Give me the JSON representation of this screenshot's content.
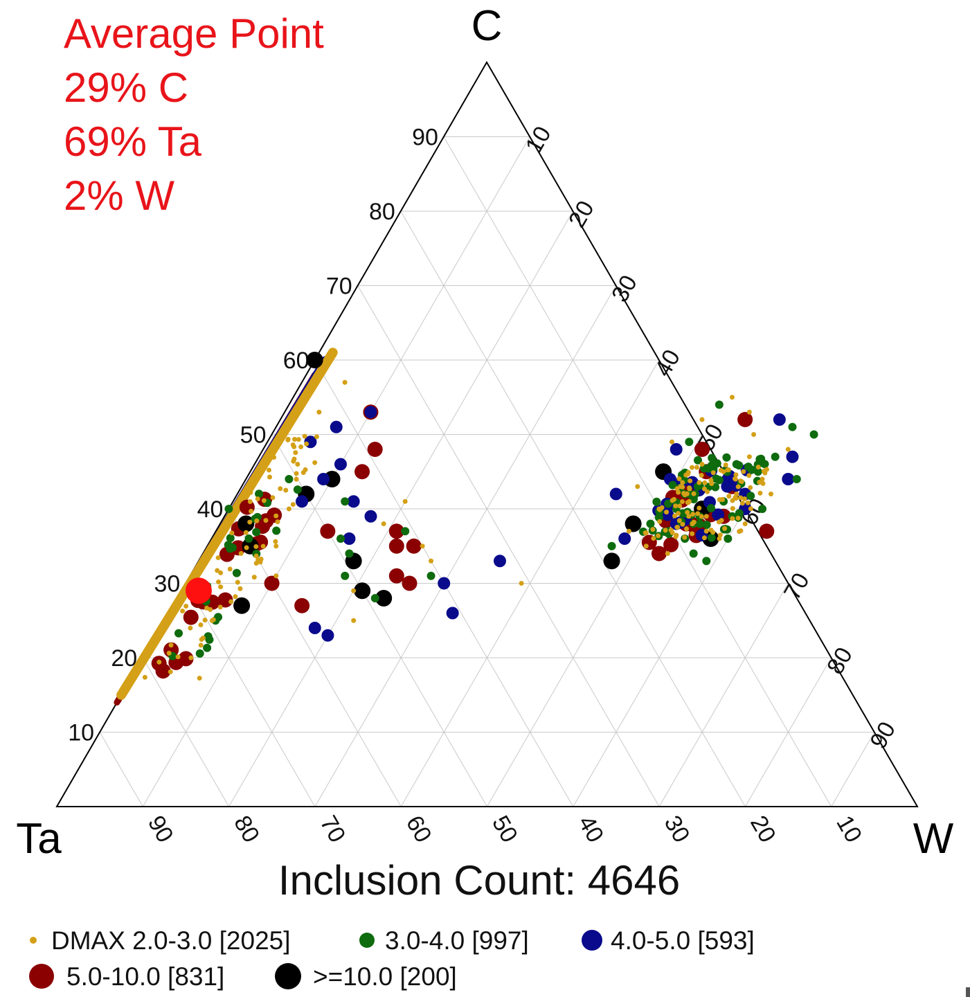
{
  "average_point": {
    "title": "Average Point",
    "c_text": "29% C",
    "ta_text": "69% Ta",
    "w_text": "2% W"
  },
  "inclusion_count_text": "Inclusion Count: 4646",
  "colors": {
    "annotation": "#e8141a",
    "grid": "#c9c9c9",
    "axis": "#000000"
  },
  "chart_data": {
    "type": "scatter",
    "subtype": "ternary",
    "vertices": {
      "top": "C",
      "left": "Ta",
      "right": "W"
    },
    "axis_ticks": [
      10,
      20,
      30,
      40,
      50,
      60,
      70,
      80,
      90
    ],
    "grid": true,
    "legend_position": "bottom",
    "average_point": {
      "C": 29,
      "Ta": 69,
      "W": 2,
      "color": "#ff1010"
    },
    "series": [
      {
        "name": "DMAX 2.0-3.0 [2025]",
        "color": "#d4a017",
        "size": "smallest"
      },
      {
        "name": "3.0-4.0 [997]",
        "color": "#0e6b0e",
        "size": "small"
      },
      {
        "name": "4.0-5.0 [593]",
        "color": "#0a0a8c",
        "size": "medium"
      },
      {
        "name": "5.0-10.0 [831]",
        "color": "#8b0000",
        "size": "large"
      },
      {
        "name": ">=10.0 [200]",
        "color": "#000000",
        "size": "largest"
      }
    ],
    "points": [
      {
        "s": 4,
        "C": 60,
        "W": 0
      },
      {
        "s": 4,
        "C": 38,
        "W": 3
      },
      {
        "s": 4,
        "C": 35,
        "W": 5
      },
      {
        "s": 4,
        "C": 27,
        "W": 8
      },
      {
        "s": 4,
        "C": 42,
        "W": 8
      },
      {
        "s": 4,
        "C": 44,
        "W": 10
      },
      {
        "s": 4,
        "C": 33,
        "W": 18
      },
      {
        "s": 4,
        "C": 29,
        "W": 21
      },
      {
        "s": 4,
        "C": 28,
        "W": 24
      },
      {
        "s": 4,
        "C": 38,
        "W": 48
      },
      {
        "s": 4,
        "C": 45,
        "W": 48
      },
      {
        "s": 4,
        "C": 33,
        "W": 48
      },
      {
        "s": 4,
        "C": 40,
        "W": 55
      },
      {
        "s": 4,
        "C": 36,
        "W": 58
      },
      {
        "s": 3,
        "C": 53,
        "W": 10
      },
      {
        "s": 3,
        "C": 37,
        "W": 13
      },
      {
        "s": 3,
        "C": 48,
        "W": 13
      },
      {
        "s": 3,
        "C": 45,
        "W": 13
      },
      {
        "s": 3,
        "C": 37,
        "W": 21
      },
      {
        "s": 3,
        "C": 35,
        "W": 22
      },
      {
        "s": 3,
        "C": 35,
        "W": 24
      },
      {
        "s": 3,
        "C": 31,
        "W": 24
      },
      {
        "s": 3,
        "C": 30,
        "W": 26
      },
      {
        "s": 3,
        "C": 30,
        "W": 10
      },
      {
        "s": 3,
        "C": 27,
        "W": 15
      },
      {
        "s": 3,
        "C": 34,
        "W": 53
      },
      {
        "s": 3,
        "C": 43,
        "W": 57
      },
      {
        "s": 3,
        "C": 39,
        "W": 58
      },
      {
        "s": 3,
        "C": 45,
        "W": 53
      },
      {
        "s": 3,
        "C": 37,
        "W": 64
      },
      {
        "s": 3,
        "C": 52,
        "W": 54
      },
      {
        "s": 3,
        "C": 48,
        "W": 51
      },
      {
        "s": 2,
        "C": 49,
        "W": 5
      },
      {
        "s": 2,
        "C": 51,
        "W": 7
      },
      {
        "s": 2,
        "C": 44,
        "W": 9
      },
      {
        "s": 2,
        "C": 41,
        "W": 8
      },
      {
        "s": 2,
        "C": 53,
        "W": 10
      },
      {
        "s": 2,
        "C": 46,
        "W": 10
      },
      {
        "s": 2,
        "C": 41,
        "W": 14
      },
      {
        "s": 2,
        "C": 36,
        "W": 16
      },
      {
        "s": 2,
        "C": 39,
        "W": 17
      },
      {
        "s": 2,
        "C": 24,
        "W": 18
      },
      {
        "s": 2,
        "C": 23,
        "W": 20
      },
      {
        "s": 2,
        "C": 30,
        "W": 30
      },
      {
        "s": 2,
        "C": 26,
        "W": 33
      },
      {
        "s": 2,
        "C": 33,
        "W": 35
      },
      {
        "s": 2,
        "C": 42,
        "W": 44
      },
      {
        "s": 2,
        "C": 48,
        "W": 48
      },
      {
        "s": 2,
        "C": 36,
        "W": 48
      },
      {
        "s": 2,
        "C": 38,
        "W": 53
      },
      {
        "s": 2,
        "C": 44,
        "W": 56
      },
      {
        "s": 2,
        "C": 40,
        "W": 60
      },
      {
        "s": 2,
        "C": 44,
        "W": 63
      },
      {
        "s": 2,
        "C": 47,
        "W": 62
      },
      {
        "s": 2,
        "C": 52,
        "W": 58
      },
      {
        "s": 2,
        "C": 42,
        "W": 59
      },
      {
        "s": 1,
        "C": 40,
        "W": 0
      },
      {
        "s": 1,
        "C": 44,
        "W": 5
      },
      {
        "s": 1,
        "C": 41,
        "W": 13
      },
      {
        "s": 1,
        "C": 36,
        "W": 15
      },
      {
        "s": 1,
        "C": 34,
        "W": 17
      },
      {
        "s": 1,
        "C": 31,
        "W": 18
      },
      {
        "s": 1,
        "C": 31,
        "W": 28
      },
      {
        "s": 1,
        "C": 28,
        "W": 23
      },
      {
        "s": 1,
        "C": 37,
        "W": 22
      },
      {
        "s": 1,
        "C": 40,
        "W": 52
      },
      {
        "s": 1,
        "C": 35,
        "W": 47
      },
      {
        "s": 1,
        "C": 49,
        "W": 49
      },
      {
        "s": 1,
        "C": 43,
        "W": 53
      },
      {
        "s": 1,
        "C": 38,
        "W": 55
      },
      {
        "s": 1,
        "C": 36,
        "W": 60
      },
      {
        "s": 1,
        "C": 41,
        "W": 57
      },
      {
        "s": 1,
        "C": 45,
        "W": 59
      },
      {
        "s": 1,
        "C": 40,
        "W": 62
      },
      {
        "s": 1,
        "C": 34,
        "W": 57
      },
      {
        "s": 1,
        "C": 42,
        "W": 52
      },
      {
        "s": 1,
        "C": 47,
        "W": 60
      },
      {
        "s": 1,
        "C": 50,
        "W": 63
      },
      {
        "s": 1,
        "C": 54,
        "W": 50
      },
      {
        "s": 1,
        "C": 51,
        "W": 60
      },
      {
        "s": 1,
        "C": 44,
        "W": 64
      },
      {
        "s": 1,
        "C": 38,
        "W": 50
      },
      {
        "s": 1,
        "C": 36,
        "W": 55
      },
      {
        "s": 1,
        "C": 46,
        "W": 56
      },
      {
        "s": 1,
        "C": 39,
        "W": 59
      },
      {
        "s": 1,
        "C": 33,
        "W": 59
      },
      {
        "s": 0,
        "C": 57,
        "W": 5
      },
      {
        "s": 0,
        "C": 53,
        "W": 4
      },
      {
        "s": 0,
        "C": 46,
        "W": 5
      },
      {
        "s": 0,
        "C": 40,
        "W": 7
      },
      {
        "s": 0,
        "C": 35,
        "W": 8
      },
      {
        "s": 0,
        "C": 31,
        "W": 10
      },
      {
        "s": 0,
        "C": 29,
        "W": 20
      },
      {
        "s": 0,
        "C": 25,
        "W": 22
      },
      {
        "s": 0,
        "C": 35,
        "W": 25
      },
      {
        "s": 0,
        "C": 33,
        "W": 27
      },
      {
        "s": 0,
        "C": 41,
        "W": 20
      },
      {
        "s": 0,
        "C": 38,
        "W": 19
      },
      {
        "s": 0,
        "C": 30,
        "W": 39
      },
      {
        "s": 0,
        "C": 55,
        "W": 51
      },
      {
        "s": 0,
        "C": 53,
        "W": 54
      },
      {
        "s": 0,
        "C": 49,
        "W": 47
      },
      {
        "s": 0,
        "C": 43,
        "W": 46
      },
      {
        "s": 0,
        "C": 37,
        "W": 48
      },
      {
        "s": 0,
        "C": 35,
        "W": 51
      },
      {
        "s": 0,
        "C": 41,
        "W": 53
      },
      {
        "s": 0,
        "C": 39,
        "W": 56
      },
      {
        "s": 0,
        "C": 42,
        "W": 58
      },
      {
        "s": 0,
        "C": 44,
        "W": 60
      },
      {
        "s": 0,
        "C": 37,
        "W": 57
      },
      {
        "s": 0,
        "C": 40,
        "W": 50
      },
      {
        "s": 0,
        "C": 45,
        "W": 55
      },
      {
        "s": 0,
        "C": 38,
        "W": 61
      },
      {
        "s": 0,
        "C": 48,
        "W": 61
      },
      {
        "s": 0,
        "C": 50,
        "W": 56
      },
      {
        "s": 0,
        "C": 34,
        "W": 54
      },
      {
        "s": 0,
        "C": 52,
        "W": 49
      },
      {
        "s": 0,
        "C": 47,
        "W": 57
      },
      {
        "s": 0,
        "C": 42,
        "W": 62
      },
      {
        "s": 0,
        "C": 36,
        "W": 59
      },
      {
        "s": 0,
        "C": 43,
        "W": 51
      },
      {
        "s": 0,
        "C": 46,
        "W": 52
      }
    ],
    "edge_bands": [
      {
        "s": 3,
        "C_from": 14,
        "C_to": 58,
        "W_from": 0,
        "W_to": 1
      },
      {
        "s": 2,
        "C_from": 15,
        "C_to": 60,
        "W_from": 0,
        "W_to": 1.2
      },
      {
        "s": 0,
        "C_from": 15,
        "C_to": 61,
        "W_from": 0,
        "W_to": 1.6
      }
    ],
    "edge_clusters": [
      {
        "s": 3,
        "C_from": 18,
        "C_to": 42,
        "W_from": 2,
        "W_to": 6,
        "n": 20
      },
      {
        "s": 1,
        "C_from": 20,
        "C_to": 44,
        "W_from": 2,
        "W_to": 7,
        "n": 25
      },
      {
        "s": 0,
        "C_from": 17,
        "C_to": 50,
        "W_from": 1,
        "W_to": 8,
        "n": 80
      },
      {
        "s": 3,
        "C_from": 35,
        "C_to": 44,
        "W_from": 50,
        "W_to": 57,
        "n": 14
      },
      {
        "s": 2,
        "C_from": 36,
        "C_to": 46,
        "W_from": 49,
        "W_to": 58,
        "n": 18
      },
      {
        "s": 1,
        "C_from": 36,
        "C_to": 47,
        "W_from": 49,
        "W_to": 60,
        "n": 60
      },
      {
        "s": 0,
        "C_from": 36,
        "C_to": 46,
        "W_from": 50,
        "W_to": 61,
        "n": 110
      }
    ]
  },
  "legend": [
    {
      "label": "DMAX 2.0-3.0 [2025]",
      "s": 0
    },
    {
      "label": "3.0-4.0 [997]",
      "s": 1
    },
    {
      "label": "4.0-5.0 [593]",
      "s": 2
    },
    {
      "label": "5.0-10.0 [831]",
      "s": 3
    },
    {
      "label": ">=10.0 [200]",
      "s": 4
    }
  ]
}
